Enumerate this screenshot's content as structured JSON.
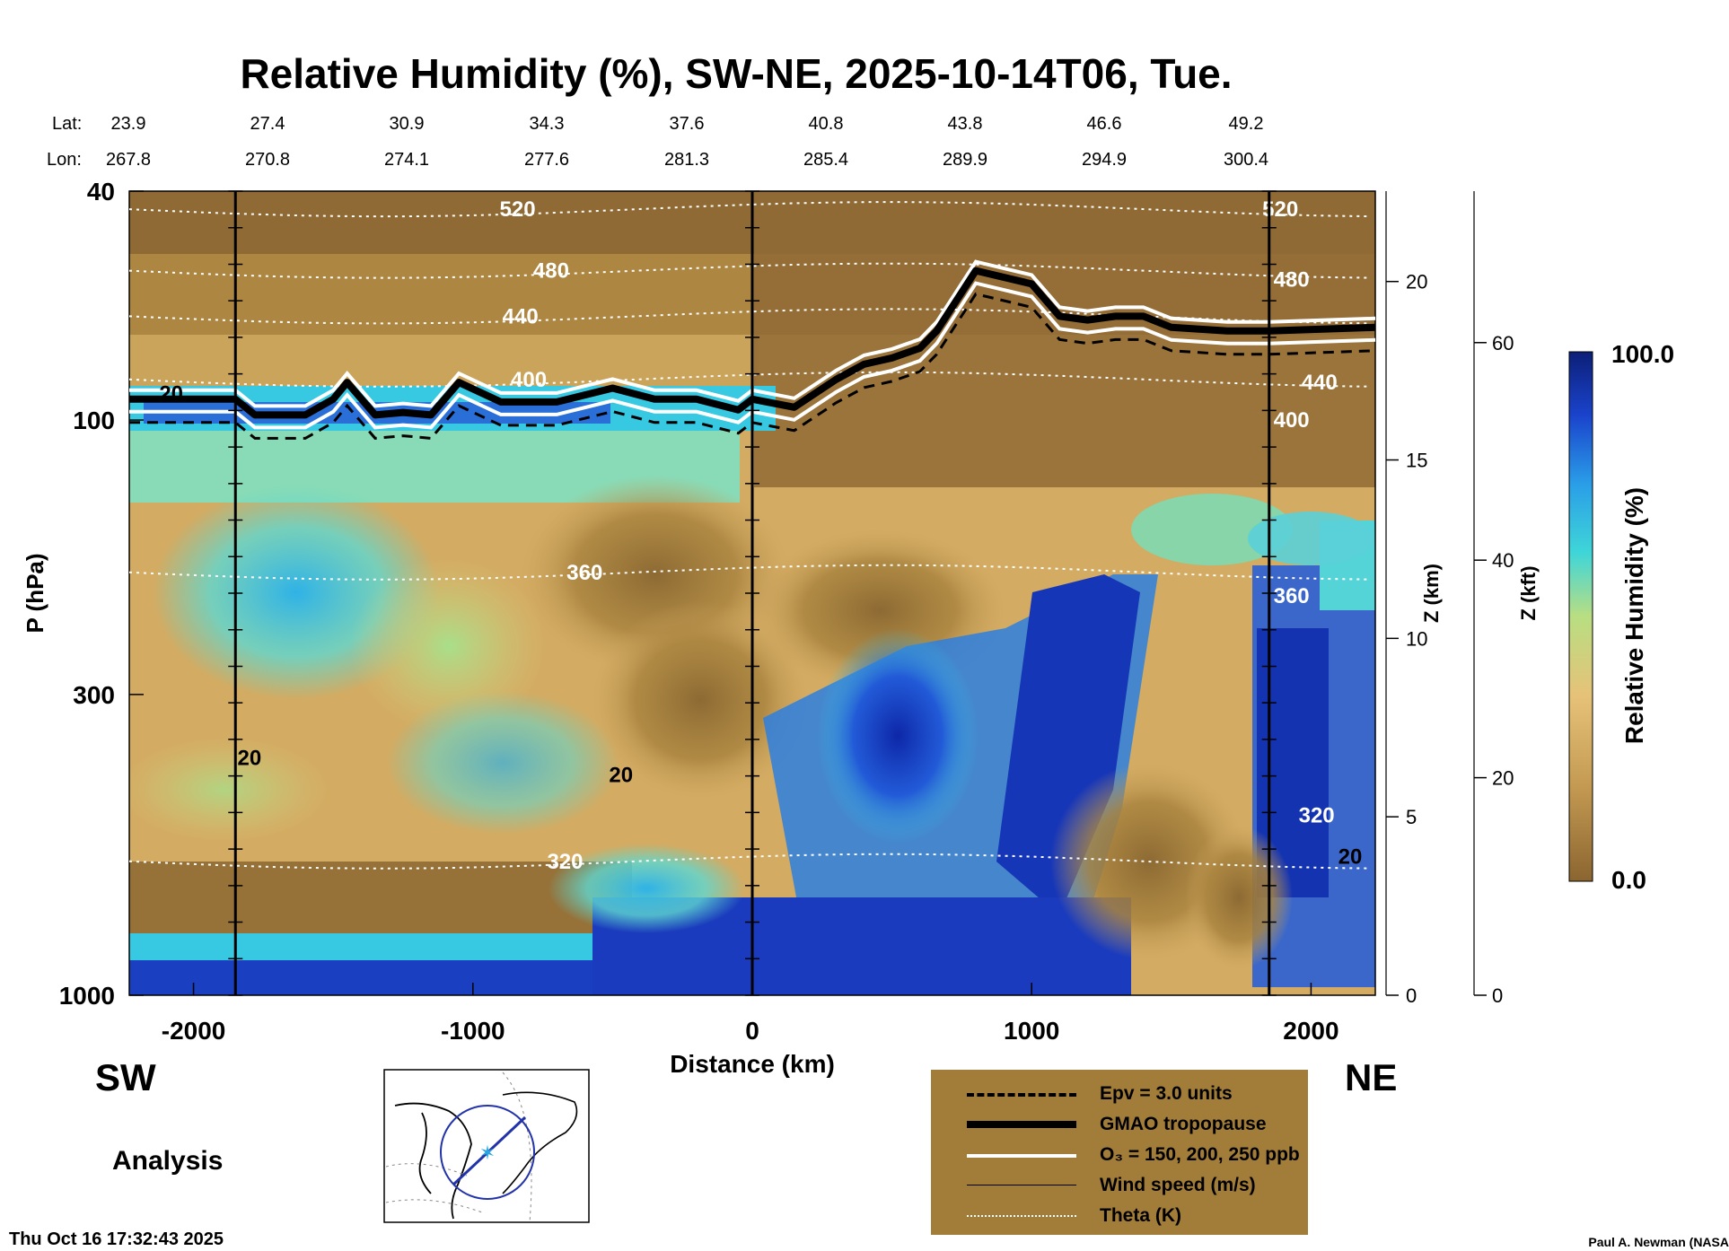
{
  "title": "Relative Humidity (%), SW-NE, 2025-10-14T06, Tue.",
  "header": {
    "lat_label": "Lat:",
    "lon_label": "Lon:",
    "lats": [
      "23.9",
      "27.4",
      "30.9",
      "34.3",
      "37.6",
      "40.8",
      "43.8",
      "46.6",
      "49.2"
    ],
    "lons": [
      "267.8",
      "270.8",
      "274.1",
      "277.6",
      "281.3",
      "285.4",
      "289.9",
      "294.9",
      "300.4"
    ]
  },
  "labels": {
    "sw": "SW",
    "ne": "NE",
    "analysis": "Analysis",
    "timestamp": "Thu Oct 16 17:32:43 2025",
    "credit": "Paul A. Newman (NASA"
  },
  "legend": {
    "items": [
      {
        "label": "Epv = 3.0 units"
      },
      {
        "label": "GMAO tropopause"
      },
      {
        "label": "O₃ = 150, 200, 250 ppb"
      },
      {
        "label": "Wind speed (m/s)"
      },
      {
        "label": "Theta (K)"
      }
    ]
  },
  "colors": {
    "brown": "#8b6530",
    "tan": "#d9b067",
    "cyan": "#33d3e6",
    "blue": "#1432b8",
    "legend_bg": "#a27d3a"
  },
  "chart_data": {
    "type": "heatmap",
    "title": "Relative Humidity (%), SW-NE, 2025-10-14T06, Tue.",
    "xlabel": "Distance (km)",
    "ylabel": "P (hPa)",
    "xlim": [
      -2230,
      2230
    ],
    "x_ticks": [
      -2000,
      -1000,
      0,
      1000,
      2000
    ],
    "y_ticks": [
      40,
      100,
      300,
      1000
    ],
    "ylim": [
      1000,
      40
    ],
    "z_km_label": "Z (km)",
    "z_km_ticks": [
      0,
      5,
      10,
      15,
      20
    ],
    "z_kft_label": "Z (kft)",
    "z_kft_ticks": [
      0,
      20,
      40,
      60
    ],
    "colorbar": {
      "label": "Relative Humidity (%)",
      "min": 0.0,
      "max": 100.0,
      "min_label": "0.0",
      "max_label": "100.0"
    },
    "vertical_markers_km": [
      -1850,
      0,
      1850
    ],
    "tropopause": [
      [
        -2230,
        92
      ],
      [
        -1850,
        92
      ],
      [
        -1780,
        98
      ],
      [
        -1720,
        98
      ],
      [
        -1600,
        98
      ],
      [
        -1500,
        92
      ],
      [
        -1450,
        86
      ],
      [
        -1350,
        98
      ],
      [
        -1250,
        97
      ],
      [
        -1150,
        98
      ],
      [
        -1050,
        86
      ],
      [
        -900,
        93
      ],
      [
        -700,
        93
      ],
      [
        -500,
        88
      ],
      [
        -350,
        92
      ],
      [
        -200,
        92
      ],
      [
        -50,
        96
      ],
      [
        0,
        92
      ],
      [
        150,
        95
      ],
      [
        300,
        85
      ],
      [
        400,
        80
      ],
      [
        500,
        78
      ],
      [
        600,
        75
      ],
      [
        660,
        70
      ],
      [
        800,
        55
      ],
      [
        1000,
        58
      ],
      [
        1100,
        66
      ],
      [
        1200,
        67
      ],
      [
        1300,
        66
      ],
      [
        1400,
        66
      ],
      [
        1500,
        69
      ],
      [
        1700,
        70
      ],
      [
        1850,
        70
      ],
      [
        2230,
        69
      ]
    ],
    "wind_speed_labels": [
      {
        "x": -2080,
        "p": 90,
        "text": "20"
      },
      {
        "x": -1800,
        "p": 387,
        "text": "20"
      },
      {
        "x": -470,
        "p": 414,
        "text": "20"
      },
      {
        "x": 2140,
        "p": 574,
        "text": "20"
      }
    ],
    "theta_labels": [
      {
        "x": -840,
        "p": 43,
        "text": "520"
      },
      {
        "x": 1890,
        "p": 43,
        "text": "520"
      },
      {
        "x": -720,
        "p": 55,
        "text": "480"
      },
      {
        "x": 1930,
        "p": 57,
        "text": "480"
      },
      {
        "x": -830,
        "p": 66,
        "text": "440"
      },
      {
        "x": 2030,
        "p": 86,
        "text": "440"
      },
      {
        "x": -800,
        "p": 85,
        "text": "400"
      },
      {
        "x": 1930,
        "p": 100,
        "text": "400"
      },
      {
        "x": -600,
        "p": 184,
        "text": "360"
      },
      {
        "x": 1930,
        "p": 202,
        "text": "360"
      },
      {
        "x": -670,
        "p": 585,
        "text": "320"
      },
      {
        "x": 2020,
        "p": 487,
        "text": "320"
      }
    ]
  }
}
